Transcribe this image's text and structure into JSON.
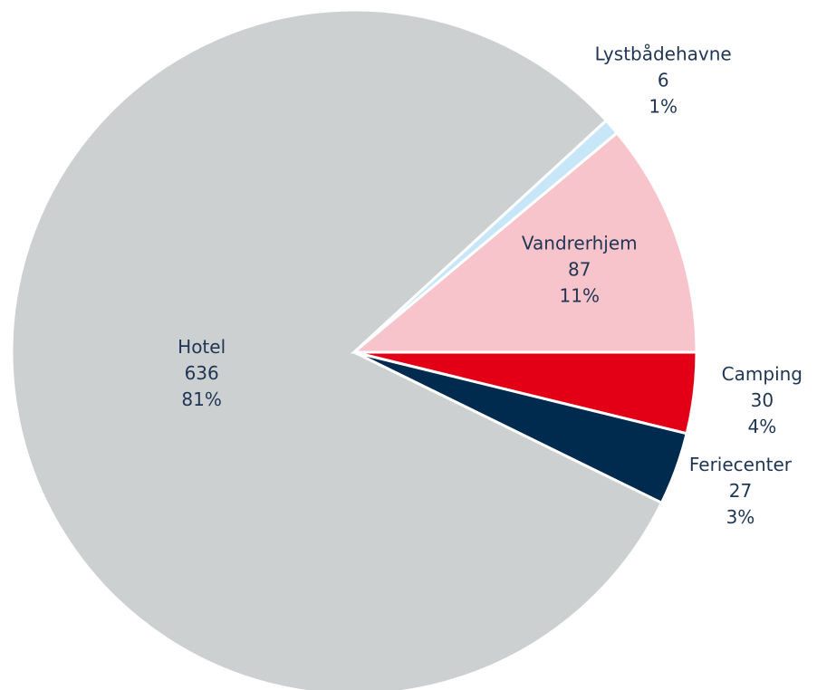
{
  "chart_data": {
    "type": "pie",
    "categories": [
      "Camping",
      "Feriecenter",
      "Hotel",
      "Lystbådehavne",
      "Vandrerhjem"
    ],
    "values": [
      30,
      27,
      636,
      6,
      87
    ],
    "percent_labels": [
      "4%",
      "3%",
      "81%",
      "1%",
      "11%"
    ],
    "colors": [
      "#e30016",
      "#002b4f",
      "#cdd0d1",
      "#c7e7f8",
      "#f8c4cc"
    ]
  }
}
